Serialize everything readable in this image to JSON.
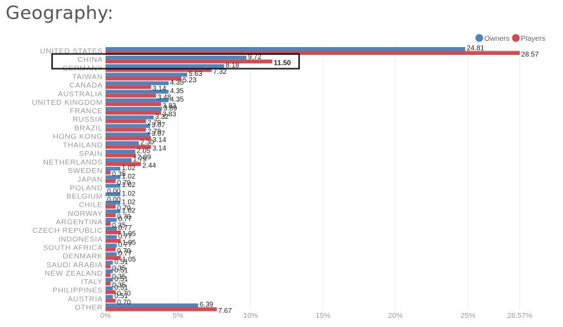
{
  "title": "Geography:",
  "colors": {
    "owners": "#4a86c0",
    "players": "#d9474f",
    "grid": "#eeeeee",
    "highlight": "#111111"
  },
  "chart_data": {
    "type": "bar",
    "orientation": "horizontal",
    "categories": [
      "UNITED STATES",
      "CHINA",
      "GERMANY",
      "TAIWAN",
      "CANADA",
      "AUSTRALIA",
      "UNITED KINGDOM",
      "FRANCE",
      "RUSSIA",
      "BRAZIL",
      "HONG KONG",
      "THAILAND",
      "SPAIN",
      "NETHERLANDS",
      "SWEDEN",
      "JAPAN",
      "POLAND",
      "BELGIUM",
      "CHILE",
      "NORWAY",
      "ARGENTINA",
      "CZECH REPUBLIC",
      "INDONESIA",
      "SOUTH AFRICA",
      "DENMARK",
      "SAUDI ARABIA",
      "NEW ZEALAND",
      "ITALY",
      "PHILIPPINES",
      "AUSTRIA",
      "OTHER"
    ],
    "series": [
      {
        "name": "Owners",
        "values": [
          24.81,
          9.72,
          8.18,
          5.63,
          4.35,
          4.35,
          4.35,
          3.89,
          3.32,
          3.07,
          3.07,
          2.3,
          2.05,
          1.79,
          1.02,
          1.02,
          1.02,
          1.02,
          1.02,
          1.02,
          0.77,
          0.77,
          0.77,
          0.77,
          0.77,
          0.51,
          0.51,
          0.51,
          0.51,
          0.51,
          6.39
        ]
      },
      {
        "name": "Players",
        "values": [
          28.57,
          11.5,
          7.32,
          5.23,
          3.14,
          3.48,
          3.83,
          3.83,
          2.79,
          2.79,
          3.14,
          3.14,
          2.09,
          2.44,
          0.35,
          0.7,
          0.0,
          0.0,
          0.7,
          0.7,
          0.35,
          1.05,
          1.05,
          0.7,
          1.05,
          0.35,
          0.35,
          0.35,
          0.7,
          0.7,
          7.67
        ]
      }
    ],
    "value_labels": {
      "owners": [
        "24.81",
        "9.72",
        "8.18",
        "5.63",
        "4.35",
        "4.35",
        "4.35",
        "3.89",
        "3.32",
        "3.07",
        "3.07",
        "2.30",
        "2.05",
        "1.79",
        "1.02",
        "1.02",
        "1.02",
        "1.02",
        "1.02",
        "1.02",
        "0.77",
        "0.77",
        "0.77",
        "0.77",
        "0.77",
        "0.51",
        "0.51",
        "0.51",
        "0.51",
        "0.51",
        "6.39"
      ],
      "players": [
        "28.57",
        "11.50",
        "7.32",
        "5.23",
        "3.14",
        "3.48",
        "3.83",
        "3.83",
        "2.79",
        "2.79",
        "3.14",
        "3.14",
        "2.09",
        "2.44",
        "0.35",
        "0.70",
        "0.00",
        "0.00",
        "0.70",
        "0.70",
        "0.35",
        "1.05",
        "1.05",
        "0.70",
        "1.05",
        "0.35",
        "0.35",
        "0.35",
        "0.70",
        "0.70",
        "7.67"
      ]
    },
    "xlim": [
      0,
      30
    ],
    "xticks": [
      0,
      5,
      10,
      15,
      20,
      25,
      28.57
    ],
    "xtick_labels": [
      "0%",
      "5%",
      "10%",
      "15%",
      "20%",
      "25%",
      "28.57%"
    ],
    "highlighted_category": "CHINA",
    "legend": {
      "position": "top-right",
      "entries": [
        "Owners",
        "Players"
      ]
    },
    "grid": true
  }
}
